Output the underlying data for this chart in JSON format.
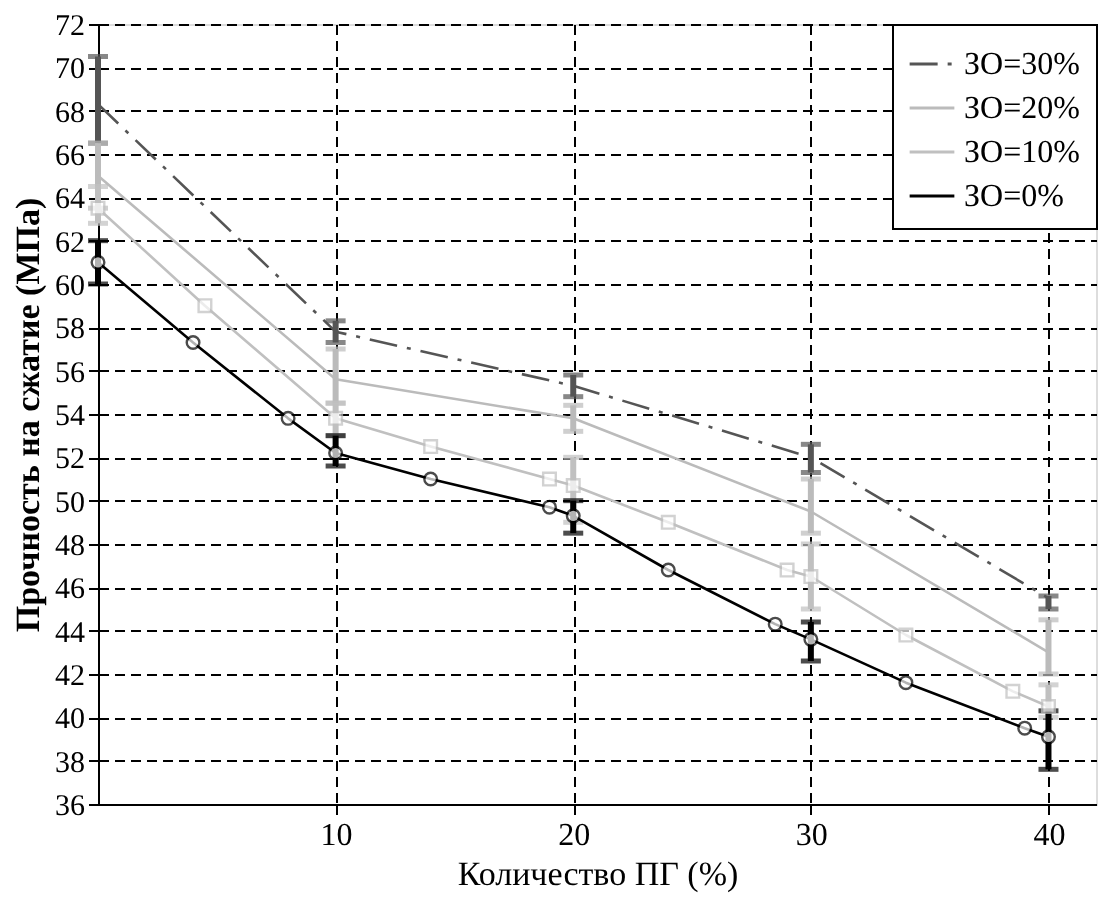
{
  "chart_data": {
    "type": "line",
    "xlabel": "Количество ПГ (%)",
    "ylabel": "Прочность на сжатие (МПа)",
    "xlim": [
      0,
      42
    ],
    "xticks": [
      10,
      20,
      30,
      40
    ],
    "ylim": [
      36,
      72
    ],
    "yticks": [
      36,
      38,
      40,
      42,
      44,
      46,
      48,
      50,
      52,
      54,
      56,
      58,
      60,
      62,
      64,
      66,
      68,
      70,
      72
    ],
    "grid": true,
    "legend": "top right",
    "series": [
      {
        "name": "ЗО=30%",
        "color": "#555555",
        "line_style": "dashdot",
        "marker": "none",
        "x": [
          0,
          10,
          20,
          30,
          40
        ],
        "values": [
          68.3,
          57.8,
          55.3,
          52,
          45.5
        ],
        "errors": [
          [
            66.5,
            70.5
          ],
          [
            57.3,
            58.3
          ],
          [
            54.8,
            55.8
          ],
          [
            51.3,
            52.6
          ],
          [
            45,
            45.6
          ]
        ]
      },
      {
        "name": "ЗО=20%",
        "color": "#bbbbbb",
        "line_style": "solid",
        "marker": "none",
        "x": [
          0,
          10,
          20,
          30,
          40
        ],
        "values": [
          65,
          55.6,
          53.8,
          49.5,
          43
        ],
        "errors": [
          [
            63.5,
            66.5
          ],
          [
            54.5,
            57
          ],
          [
            53.2,
            54.4
          ],
          [
            48.5,
            51
          ],
          [
            42,
            44.5
          ]
        ]
      },
      {
        "name": "ЗО=10%",
        "color": "#c0c0c0",
        "line_style": "solid",
        "marker": "square",
        "x": [
          0,
          4.5,
          10,
          14,
          19,
          20,
          24,
          29,
          30,
          34,
          38.5,
          40
        ],
        "values": [
          63.5,
          59,
          53.8,
          52.5,
          51,
          50.7,
          49,
          46.8,
          46.5,
          43.8,
          41.2,
          40.5
        ],
        "errors": [
          [
            62.8,
            64.5
          ],
          null,
          [
            53,
            54.5
          ],
          null,
          null,
          [
            49,
            52
          ],
          null,
          null,
          [
            45,
            48
          ],
          null,
          null,
          [
            40,
            41.5
          ]
        ]
      },
      {
        "name": "ЗО=0%",
        "color": "#000000",
        "line_style": "solid",
        "marker": "circle",
        "x": [
          0,
          4,
          8,
          10,
          14,
          19,
          20,
          24,
          28.5,
          30,
          34,
          39,
          40
        ],
        "values": [
          61,
          57.3,
          53.8,
          52.2,
          51,
          49.7,
          49.3,
          46.8,
          44.3,
          43.6,
          41.6,
          39.5,
          39.1
        ],
        "errors": [
          [
            60,
            62
          ],
          null,
          null,
          [
            51.6,
            53
          ],
          null,
          null,
          [
            48.5,
            50
          ],
          null,
          null,
          [
            42.6,
            44.4
          ],
          null,
          null,
          [
            37.6,
            40.3
          ]
        ]
      }
    ]
  }
}
